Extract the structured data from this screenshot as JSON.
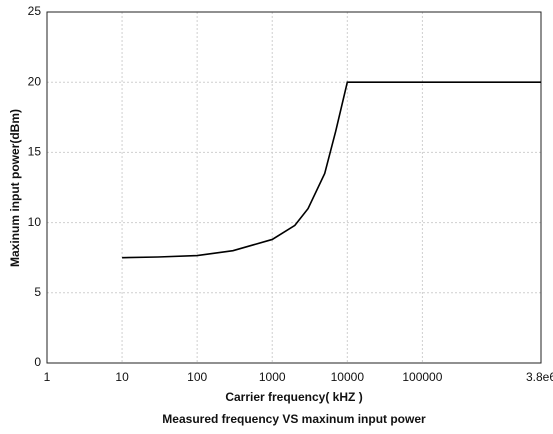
{
  "chart_data": {
    "type": "line",
    "title": "Measured frequency VS maxinum input power",
    "xlabel": "Carrier frequency( kHZ )",
    "ylabel": "Maxinum input power(dBm)",
    "x": [
      10,
      30,
      100,
      300,
      1000,
      2000,
      3000,
      5000,
      7000,
      10000,
      3800000
    ],
    "values": [
      7.5,
      7.55,
      7.65,
      8.0,
      8.8,
      9.8,
      11,
      13.5,
      16.5,
      20,
      20
    ],
    "color": "#000000",
    "xscale": "log",
    "xlim": [
      1,
      3800000
    ],
    "xticks": [
      1,
      10,
      100,
      1000,
      10000,
      100000,
      {
        "value": 3800000,
        "label": "3.8e6"
      }
    ],
    "ylim": [
      0,
      25
    ],
    "yticks": [
      0,
      5,
      10,
      15,
      20,
      25
    ],
    "grid": true
  }
}
